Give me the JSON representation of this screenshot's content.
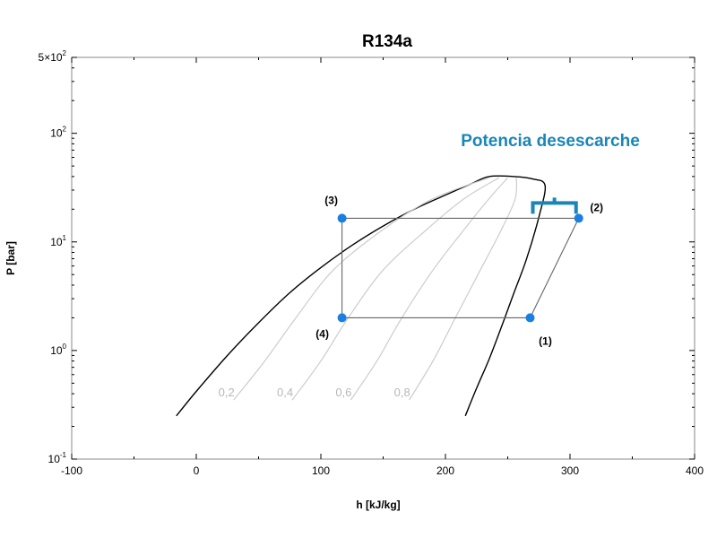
{
  "chart_data": {
    "type": "line",
    "title": "R134a",
    "xlabel": "h [kJ/kg]",
    "ylabel": "P [bar]",
    "xlim": [
      -100,
      400
    ],
    "ylim": [
      0.1,
      500
    ],
    "y_scale": "log",
    "grid": false,
    "x_ticks": [
      "-100",
      "0",
      "100",
      "200",
      "300",
      "400"
    ],
    "x_tick_values": [
      -100,
      0,
      100,
      200,
      300,
      400
    ],
    "y_ticks": [
      {
        "mantissa": "5×10",
        "exp": "2",
        "value": 500
      },
      {
        "mantissa": "10",
        "exp": "2",
        "value": 100
      },
      {
        "mantissa": "10",
        "exp": "1",
        "value": 10
      },
      {
        "mantissa": "10",
        "exp": "0",
        "value": 1
      },
      {
        "mantissa": "10",
        "exp": "-1",
        "value": 0.1
      }
    ],
    "saturation_dome": {
      "liquid_line": [
        [
          -16,
          0.25
        ],
        [
          0,
          0.42
        ],
        [
          25,
          0.9
        ],
        [
          50,
          1.8
        ],
        [
          75,
          3.4
        ],
        [
          100,
          5.8
        ],
        [
          125,
          9.3
        ],
        [
          150,
          14
        ],
        [
          175,
          20
        ],
        [
          200,
          27
        ],
        [
          220,
          34
        ],
        [
          235,
          40
        ]
      ],
      "top_curve": [
        [
          235,
          40
        ],
        [
          255,
          40
        ],
        [
          270,
          38
        ],
        [
          280,
          33
        ]
      ],
      "vapor_line": [
        [
          280,
          33
        ],
        [
          275,
          17
        ],
        [
          265,
          6.9
        ],
        [
          255,
          3.4
        ],
        [
          245,
          1.65
        ],
        [
          235,
          0.83
        ],
        [
          225,
          0.45
        ],
        [
          216,
          0.25
        ]
      ]
    },
    "quality_lines": [
      {
        "label": "0,2",
        "value": 0.2,
        "points": [
          [
            30,
            0.35
          ],
          [
            55,
            0.8
          ],
          [
            80,
            2.0
          ],
          [
            110,
            5.5
          ],
          [
            150,
            13
          ],
          [
            190,
            25
          ],
          [
            235,
            39
          ]
        ]
      },
      {
        "label": "0,4",
        "value": 0.4,
        "points": [
          [
            77,
            0.35
          ],
          [
            100,
            0.8
          ],
          [
            122,
            2.0
          ],
          [
            150,
            5.5
          ],
          [
            185,
            13
          ],
          [
            215,
            25
          ],
          [
            243,
            39
          ]
        ]
      },
      {
        "label": "0,6",
        "value": 0.6,
        "points": [
          [
            124,
            0.35
          ],
          [
            145,
            0.8
          ],
          [
            165,
            2.0
          ],
          [
            190,
            5.5
          ],
          [
            215,
            13
          ],
          [
            235,
            25
          ],
          [
            250,
            39
          ]
        ]
      },
      {
        "label": "0,8",
        "value": 0.8,
        "points": [
          [
            171,
            0.35
          ],
          [
            190,
            0.8
          ],
          [
            208,
            2.0
          ],
          [
            228,
            5.5
          ],
          [
            245,
            13
          ],
          [
            256,
            25
          ],
          [
            257,
            39
          ]
        ]
      }
    ],
    "cycle": {
      "points": [
        {
          "label": "(1)",
          "h": 268,
          "P": 2.0
        },
        {
          "label": "(2)",
          "h": 307,
          "P": 16.5
        },
        {
          "label": "(3)",
          "h": 117,
          "P": 16.5
        },
        {
          "label": "(4)",
          "h": 117,
          "P": 2.0
        }
      ],
      "color": "#1976d2"
    },
    "annotation": {
      "text": "Potencia desescarche",
      "color": "#1a86b8",
      "bracket_h": [
        268,
        307
      ]
    },
    "colors": {
      "dome": "#000000",
      "quality": "#cccccc",
      "cycle_line": "#666666",
      "point": "#1a7fe0"
    }
  }
}
